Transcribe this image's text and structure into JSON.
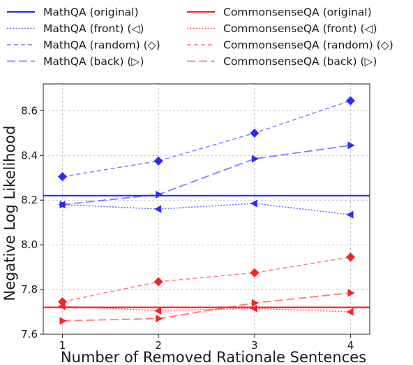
{
  "chart_data": {
    "type": "line",
    "title": "",
    "xlabel": "Number of Removed Rationale Sentences",
    "ylabel": "Negative Log Likelihood",
    "x": [
      1,
      2,
      3,
      4
    ],
    "x_ticks": [
      "1",
      "2",
      "3",
      "4"
    ],
    "xlim": [
      0.8,
      4.2
    ],
    "ylim": [
      7.6,
      8.72
    ],
    "y_ticks": [
      {
        "value": 7.6,
        "label": "7.6"
      },
      {
        "value": 7.8,
        "label": "7.8"
      },
      {
        "value": 8.0,
        "label": "8.0"
      },
      {
        "value": 8.2,
        "label": "8.2"
      },
      {
        "value": 8.4,
        "label": "8.4"
      },
      {
        "value": 8.6,
        "label": "8.6"
      }
    ],
    "grid": true,
    "legend_position": "top, above plot, two columns",
    "series": [
      {
        "name": "MathQA (original)",
        "kind": "hline",
        "value": 8.22,
        "color": "#2a2aff",
        "style": "solid",
        "marker": "none"
      },
      {
        "name": "MathQA (front) (◁)",
        "values": [
          8.18,
          8.16,
          8.185,
          8.135
        ],
        "color": "#2a2aff",
        "style": "dotted",
        "marker": "left-triangle"
      },
      {
        "name": "MathQA (random) (◇)",
        "values": [
          8.305,
          8.375,
          8.5,
          8.645
        ],
        "color": "#2a2aff",
        "style": "dashed",
        "marker": "diamond"
      },
      {
        "name": "MathQA (back) (▷)",
        "values": [
          8.18,
          8.225,
          8.385,
          8.445
        ],
        "color": "#2a2aff",
        "style": "longdash",
        "marker": "right-triangle"
      },
      {
        "name": "CommonsenseQA (original)",
        "kind": "hline",
        "value": 7.72,
        "color": "#ff2020",
        "style": "solid",
        "marker": "none"
      },
      {
        "name": "CommonsenseQA (front) (◁)",
        "values": [
          7.725,
          7.705,
          7.715,
          7.7
        ],
        "color": "#ff2020",
        "style": "dotted",
        "marker": "left-triangle"
      },
      {
        "name": "CommonsenseQA (random) (◇)",
        "values": [
          7.745,
          7.835,
          7.875,
          7.945
        ],
        "color": "#ff2020",
        "style": "dashed",
        "marker": "diamond"
      },
      {
        "name": "CommonsenseQA (back) (▷)",
        "values": [
          7.66,
          7.67,
          7.74,
          7.785
        ],
        "color": "#ff2020",
        "style": "longdash",
        "marker": "right-triangle"
      }
    ]
  }
}
